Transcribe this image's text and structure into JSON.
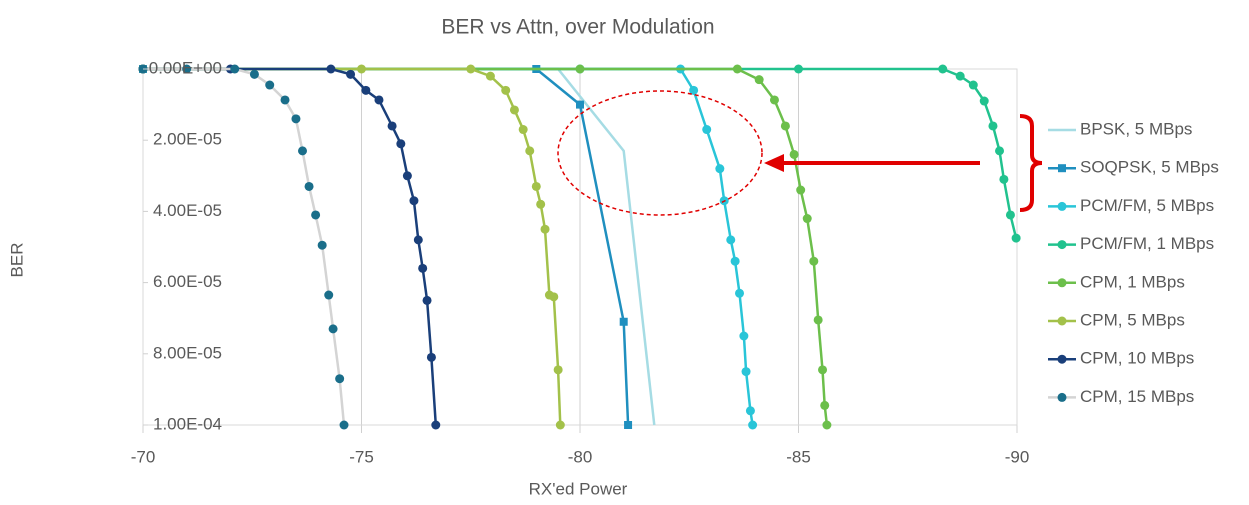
{
  "chart_data": {
    "type": "line",
    "title": "BER vs Attn, over Modulation",
    "xlabel": "RX'ed Power",
    "ylabel": "BER",
    "xlim": [
      -70,
      -90
    ],
    "xticks": [
      -70,
      -75,
      -80,
      -85,
      -90
    ],
    "ylim": [
      0,
      0.0001
    ],
    "yticks": [
      {
        "value": 0,
        "label": "0.00E+00"
      },
      {
        "value": 2e-05,
        "label": "2.00E-05"
      },
      {
        "value": 4e-05,
        "label": "4.00E-05"
      },
      {
        "value": 6e-05,
        "label": "6.00E-05"
      },
      {
        "value": 8e-05,
        "label": "8.00E-05"
      },
      {
        "value": 0.0001,
        "label": "1.00E-04"
      }
    ],
    "grid": true,
    "legend": "right",
    "series": [
      {
        "name": "BPSK, 5 MBps",
        "color": "#a6dce4",
        "marker": "none",
        "x": [
          -70,
          -79.5,
          -81,
          -81.7
        ],
        "values": [
          0,
          0,
          2.3e-05,
          0.0001
        ]
      },
      {
        "name": "SOQPSK, 5 MBps",
        "color": "#1f8fbf",
        "marker": "square",
        "x": [
          -70,
          -79,
          -80,
          -81,
          -81.1
        ],
        "values": [
          0,
          0,
          1e-05,
          7.1e-05,
          0.0001
        ]
      },
      {
        "name": "PCM/FM, 5 MBps",
        "color": "#29c5d8",
        "marker": "circle",
        "x": [
          -70,
          -80,
          -82.3,
          -82.6,
          -82.9,
          -83.2,
          -83.3,
          -83.45,
          -83.55,
          -83.65,
          -83.75,
          -83.8,
          -83.9,
          -83.95
        ],
        "values": [
          0,
          0,
          0,
          6e-06,
          1.7e-05,
          2.8e-05,
          3.7e-05,
          4.8e-05,
          5.4e-05,
          6.3e-05,
          7.5e-05,
          8.5e-05,
          9.6e-05,
          0.0001
        ]
      },
      {
        "name": "PCM/FM, 1 MBps",
        "color": "#21c28e",
        "marker": "circle",
        "x": [
          -70,
          -85,
          -88.3,
          -88.7,
          -89,
          -89.25,
          -89.45,
          -89.6,
          -89.7,
          -89.85,
          -89.98
        ],
        "values": [
          0,
          0,
          0,
          2e-06,
          4.5e-06,
          9e-06,
          1.6e-05,
          2.3e-05,
          3.1e-05,
          4.1e-05,
          4.75e-05
        ]
      },
      {
        "name": "CPM, 1 MBps",
        "color": "#6cbf4b",
        "marker": "circle",
        "x": [
          -70,
          -80,
          -83.6,
          -84.1,
          -84.45,
          -84.7,
          -84.9,
          -85.05,
          -85.2,
          -85.35,
          -85.45,
          -85.55,
          -85.6,
          -85.65
        ],
        "values": [
          0,
          0,
          0,
          3e-06,
          8.7e-06,
          1.6e-05,
          2.4e-05,
          3.4e-05,
          4.2e-05,
          5.4e-05,
          7.05e-05,
          8.45e-05,
          9.45e-05,
          0.0001
        ]
      },
      {
        "name": "CPM, 5 MBps",
        "color": "#a3c14a",
        "marker": "circle",
        "x": [
          -70,
          -75,
          -77.5,
          -77.95,
          -78.3,
          -78.5,
          -78.7,
          -78.85,
          -79,
          -79.1,
          -79.2,
          -79.3,
          -79.4,
          -79.5,
          -79.55
        ],
        "values": [
          0,
          0,
          0,
          2e-06,
          6e-06,
          1.15e-05,
          1.7e-05,
          2.3e-05,
          3.3e-05,
          3.8e-05,
          4.5e-05,
          6.35e-05,
          6.4e-05,
          8.45e-05,
          0.0001
        ]
      },
      {
        "name": "CPM, 10 MBps",
        "color": "#1a3f7a",
        "marker": "circle",
        "x": [
          -70,
          -72,
          -74.3,
          -74.75,
          -75.1,
          -75.4,
          -75.7,
          -75.9,
          -76.05,
          -76.2,
          -76.3,
          -76.4,
          -76.5,
          -76.6,
          -76.7
        ],
        "values": [
          0,
          0,
          0,
          1.5e-06,
          6e-06,
          8.7e-06,
          1.6e-05,
          2.1e-05,
          3e-05,
          3.7e-05,
          4.8e-05,
          5.6e-05,
          6.5e-05,
          8.1e-05,
          0.0001
        ]
      },
      {
        "name": "CPM, 15 MBps",
        "color": "#d4d4d4",
        "marker_color": "#1a6e8a",
        "marker": "circle",
        "x": [
          -70,
          -71,
          -72.1,
          -72.55,
          -72.9,
          -73.25,
          -73.5,
          -73.65,
          -73.8,
          -73.95,
          -74.1,
          -74.25,
          -74.35,
          -74.5,
          -74.6
        ],
        "values": [
          0,
          0,
          0,
          1.5e-06,
          4.5e-06,
          8.7e-06,
          1.4e-05,
          2.3e-05,
          3.3e-05,
          4.1e-05,
          4.95e-05,
          6.35e-05,
          7.3e-05,
          8.7e-05,
          0.0001
        ]
      }
    ]
  }
}
